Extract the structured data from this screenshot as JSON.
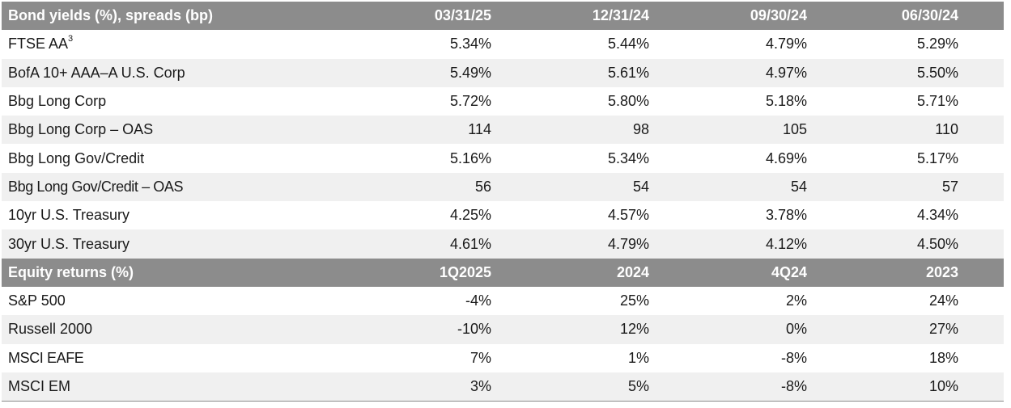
{
  "bond_section": {
    "header": {
      "label": "Bond yields (%), spreads (bp)",
      "columns": [
        "03/31/25",
        "12/31/24",
        "09/30/24",
        "06/30/24"
      ]
    },
    "rows": [
      {
        "label": "FTSE AA",
        "footnote": "3",
        "values": [
          "5.34%",
          "5.44%",
          "4.79%",
          "5.29%"
        ]
      },
      {
        "label": "BofA 10+ AAA–A U.S. Corp",
        "values": [
          "5.49%",
          "5.61%",
          "4.97%",
          "5.50%"
        ]
      },
      {
        "label": "Bbg Long Corp",
        "values": [
          "5.72%",
          "5.80%",
          "5.18%",
          "5.71%"
        ]
      },
      {
        "label": "Bbg Long Corp – OAS",
        "values": [
          "114",
          "98",
          "105",
          "110"
        ]
      },
      {
        "label": "Bbg Long Gov/Credit",
        "values": [
          "5.16%",
          "5.34%",
          "4.69%",
          "5.17%"
        ]
      },
      {
        "label": "Bbg Long Gov/Credit – OAS",
        "values": [
          "56",
          "54",
          "54",
          "57"
        ]
      },
      {
        "label": "10yr U.S. Treasury",
        "values": [
          "4.25%",
          "4.57%",
          "3.78%",
          "4.34%"
        ]
      },
      {
        "label": "30yr U.S. Treasury",
        "values": [
          "4.61%",
          "4.79%",
          "4.12%",
          "4.50%"
        ]
      }
    ]
  },
  "equity_section": {
    "header": {
      "label": "Equity returns (%)",
      "columns": [
        "1Q2025",
        "2024",
        "4Q24",
        "2023"
      ]
    },
    "rows": [
      {
        "label": "S&P 500",
        "values": [
          "-4%",
          "25%",
          "2%",
          "24%"
        ]
      },
      {
        "label": "Russell 2000",
        "values": [
          "-10%",
          "12%",
          "0%",
          "27%"
        ]
      },
      {
        "label": "MSCI EAFE",
        "values": [
          "7%",
          "1%",
          "-8%",
          "18%"
        ]
      },
      {
        "label": "MSCI EM",
        "values": [
          "3%",
          "5%",
          "-8%",
          "10%"
        ]
      }
    ]
  }
}
